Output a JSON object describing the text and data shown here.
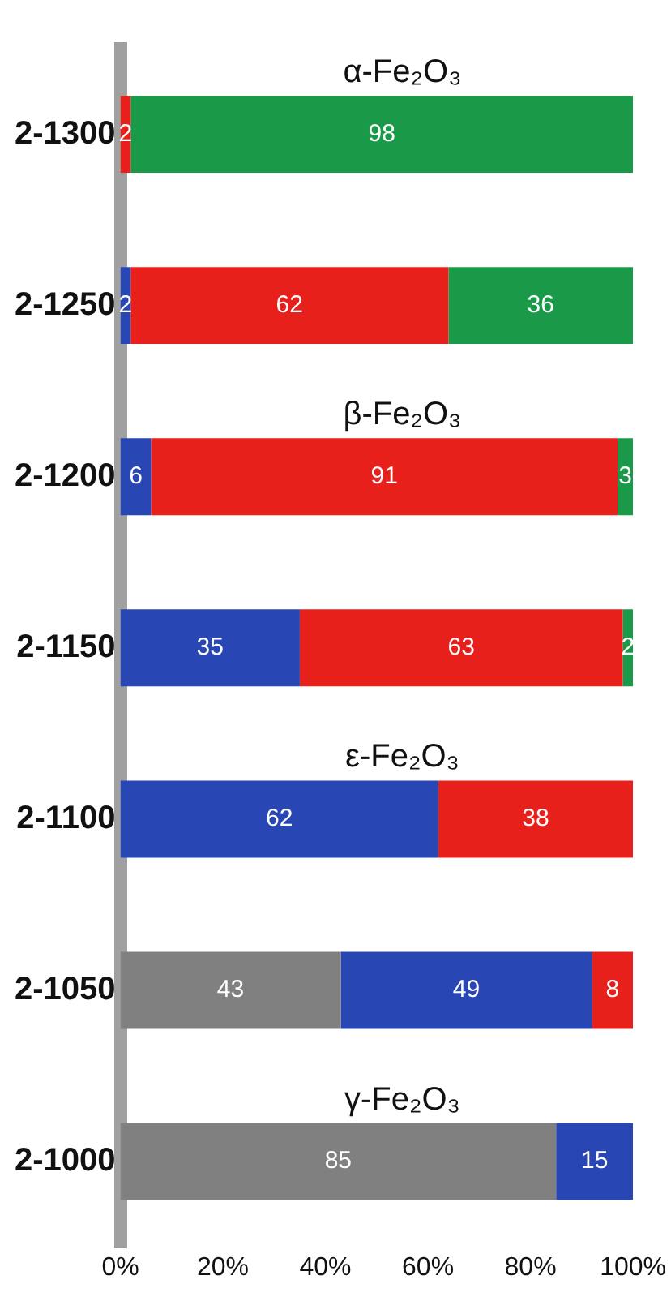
{
  "chart_data": {
    "type": "bar",
    "orientation": "horizontal",
    "stacked": true,
    "categories": [
      "2-1300",
      "2-1250",
      "2-1200",
      "2-1150",
      "2-1100",
      "2-1050",
      "2-1000"
    ],
    "series": [
      {
        "name": "γ-Fe₂O₃",
        "color": "#808080",
        "values": [
          null,
          null,
          null,
          null,
          null,
          43,
          85
        ]
      },
      {
        "name": "ε-Fe₂O₃",
        "color": "#2846b4",
        "values": [
          null,
          2,
          6,
          35,
          62,
          49,
          15
        ]
      },
      {
        "name": "β-Fe₂O₃",
        "color": "#e8201c",
        "values": [
          2,
          62,
          91,
          63,
          38,
          8,
          null
        ]
      },
      {
        "name": "α-Fe₂O₃",
        "color": "#1a9a48",
        "values": [
          98,
          36,
          3,
          2,
          null,
          null,
          null
        ]
      }
    ],
    "xlim": [
      0,
      100
    ],
    "xticks": [
      {
        "value": 0,
        "label": "0%"
      },
      {
        "value": 20,
        "label": "20%"
      },
      {
        "value": 40,
        "label": "40%"
      },
      {
        "value": 60,
        "label": "60%"
      },
      {
        "value": 80,
        "label": "80%"
      },
      {
        "value": 100,
        "label": "100%"
      }
    ],
    "grid": false,
    "legend": false,
    "data_labels": true
  }
}
